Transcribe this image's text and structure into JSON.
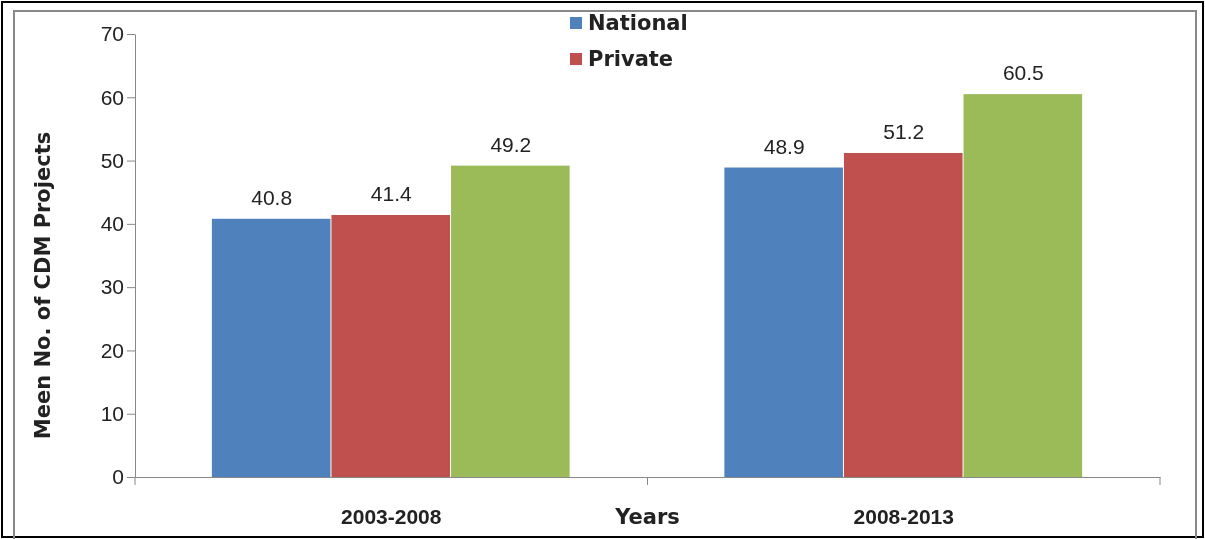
{
  "chart_data": {
    "type": "bar",
    "xlabel": "Years",
    "ylabel": "Meen No. of CDM Projects",
    "categories": [
      "2003-2008",
      "2008-2013"
    ],
    "series": [
      {
        "name": "National",
        "color": "#4f81bd",
        "values": [
          40.8,
          48.9
        ]
      },
      {
        "name": "Private",
        "color": "#c0504d",
        "values": [
          41.4,
          51.2
        ]
      },
      {
        "color": "#9bbb59",
        "values": [
          49.2,
          60.5
        ]
      }
    ],
    "ylim": [
      0,
      70
    ],
    "yticks": [
      0,
      10,
      20,
      30,
      40,
      50,
      60,
      70
    ],
    "grid": false,
    "legend": "top",
    "data_labels": true
  }
}
